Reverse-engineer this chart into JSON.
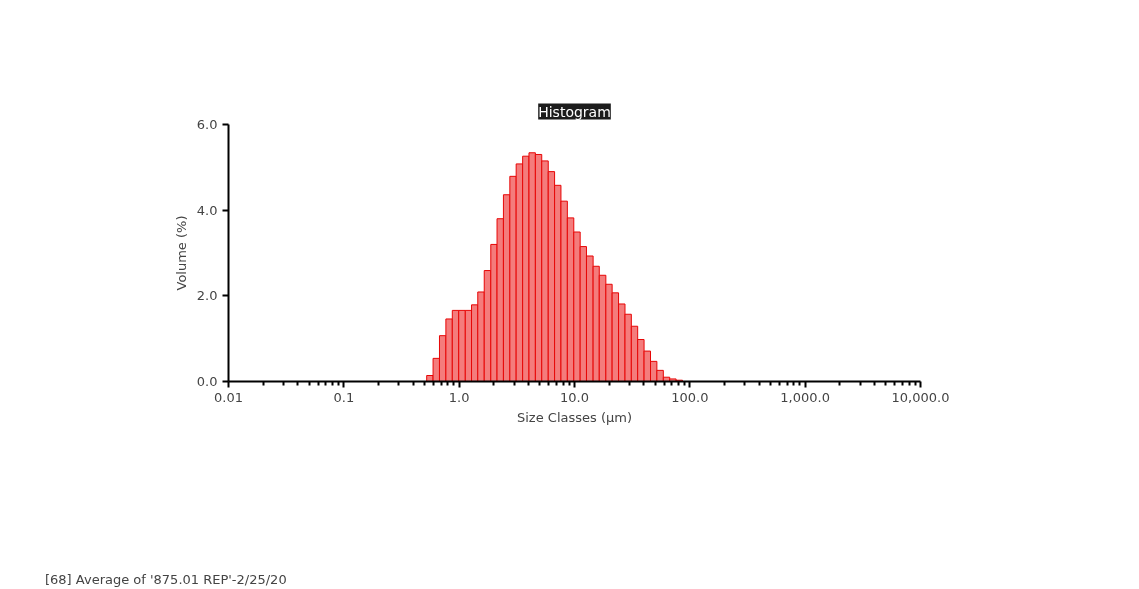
{
  "chart_data": {
    "type": "histogram",
    "title": "Histogram",
    "xlabel": "Size Classes (µm)",
    "ylabel": "Volume (%)",
    "log": "x",
    "grid": false,
    "legend": "bottom left",
    "bins": [
      0.01,
      0.0114,
      0.0129,
      0.0147,
      0.0167,
      0.0189,
      0.0215,
      0.0244,
      0.0278,
      0.0315,
      0.0358,
      0.0407,
      0.0463,
      0.0526,
      0.0597,
      0.0679,
      0.0771,
      0.0876,
      0.0995,
      0.113,
      0.128,
      0.146,
      0.166,
      0.188,
      0.214,
      0.243,
      0.276,
      0.314,
      0.357,
      0.405,
      0.46,
      0.523,
      0.594,
      0.675,
      0.767,
      0.872,
      0.991,
      1.13,
      1.28,
      1.45,
      1.65,
      1.88,
      2.13,
      2.42,
      2.75,
      3.12,
      3.55,
      4.03,
      4.58,
      5.2,
      5.92,
      6.72,
      7.63,
      8.67,
      9.86,
      11.2,
      12.7,
      14.5,
      16.4,
      18.7,
      21.2,
      24.1,
      27.4,
      31.1,
      35.3,
      40.1,
      45.6,
      51.8,
      58.9,
      66.9,
      76,
      86.4,
      98.1,
      111,
      127,
      144,
      163,
      186,
      211,
      240,
      272,
      310,
      352,
      400,
      454,
      516,
      586,
      666,
      757,
      860,
      977,
      1110,
      1260,
      1430,
      1630,
      1850,
      2100,
      2390,
      2710,
      3080,
      3500
    ],
    "series": [
      {
        "name": "[68] Average of '875.01 REP'-2/25/20",
        "color": "#f47c7c",
        "values": [
          0,
          0,
          0,
          0,
          0,
          0,
          0,
          0,
          0,
          0,
          0,
          0,
          0,
          0,
          0,
          0,
          0,
          0,
          0,
          0,
          0,
          0,
          0,
          0,
          0,
          0,
          0,
          0,
          0,
          0,
          0,
          0.14,
          0.54,
          1.07,
          1.46,
          1.66,
          1.66,
          1.66,
          1.79,
          2.09,
          2.59,
          3.2,
          3.8,
          4.36,
          4.79,
          5.08,
          5.26,
          5.34,
          5.3,
          5.15,
          4.9,
          4.58,
          4.21,
          3.82,
          3.49,
          3.15,
          2.93,
          2.69,
          2.48,
          2.27,
          2.07,
          1.81,
          1.57,
          1.29,
          0.98,
          0.71,
          0.47,
          0.26,
          0.1,
          0.06,
          0.03,
          0,
          0,
          0,
          0,
          0,
          0,
          0,
          0,
          0,
          0,
          0,
          0,
          0,
          0,
          0,
          0,
          0,
          0,
          0,
          0,
          0,
          0,
          0,
          0,
          0,
          0,
          0,
          0,
          0
        ]
      }
    ],
    "xlim": [
      0.01,
      10000
    ],
    "ylim": [
      0,
      6
    ],
    "xticks": [
      {
        "value": 0.01,
        "label": "0.01"
      },
      {
        "value": 0.1,
        "label": "0.1"
      },
      {
        "value": 1,
        "label": "1.0"
      },
      {
        "value": 10,
        "label": "10.0"
      },
      {
        "value": 100,
        "label": "100.0"
      },
      {
        "value": 1000,
        "label": "1,000.0"
      },
      {
        "value": 10000,
        "label": "10,000.0"
      }
    ],
    "yticks": [
      {
        "value": 0,
        "label": "0.0"
      },
      {
        "value": 2,
        "label": "2.0"
      },
      {
        "value": 4,
        "label": "4.0"
      },
      {
        "value": 6,
        "label": "6.0"
      }
    ]
  }
}
